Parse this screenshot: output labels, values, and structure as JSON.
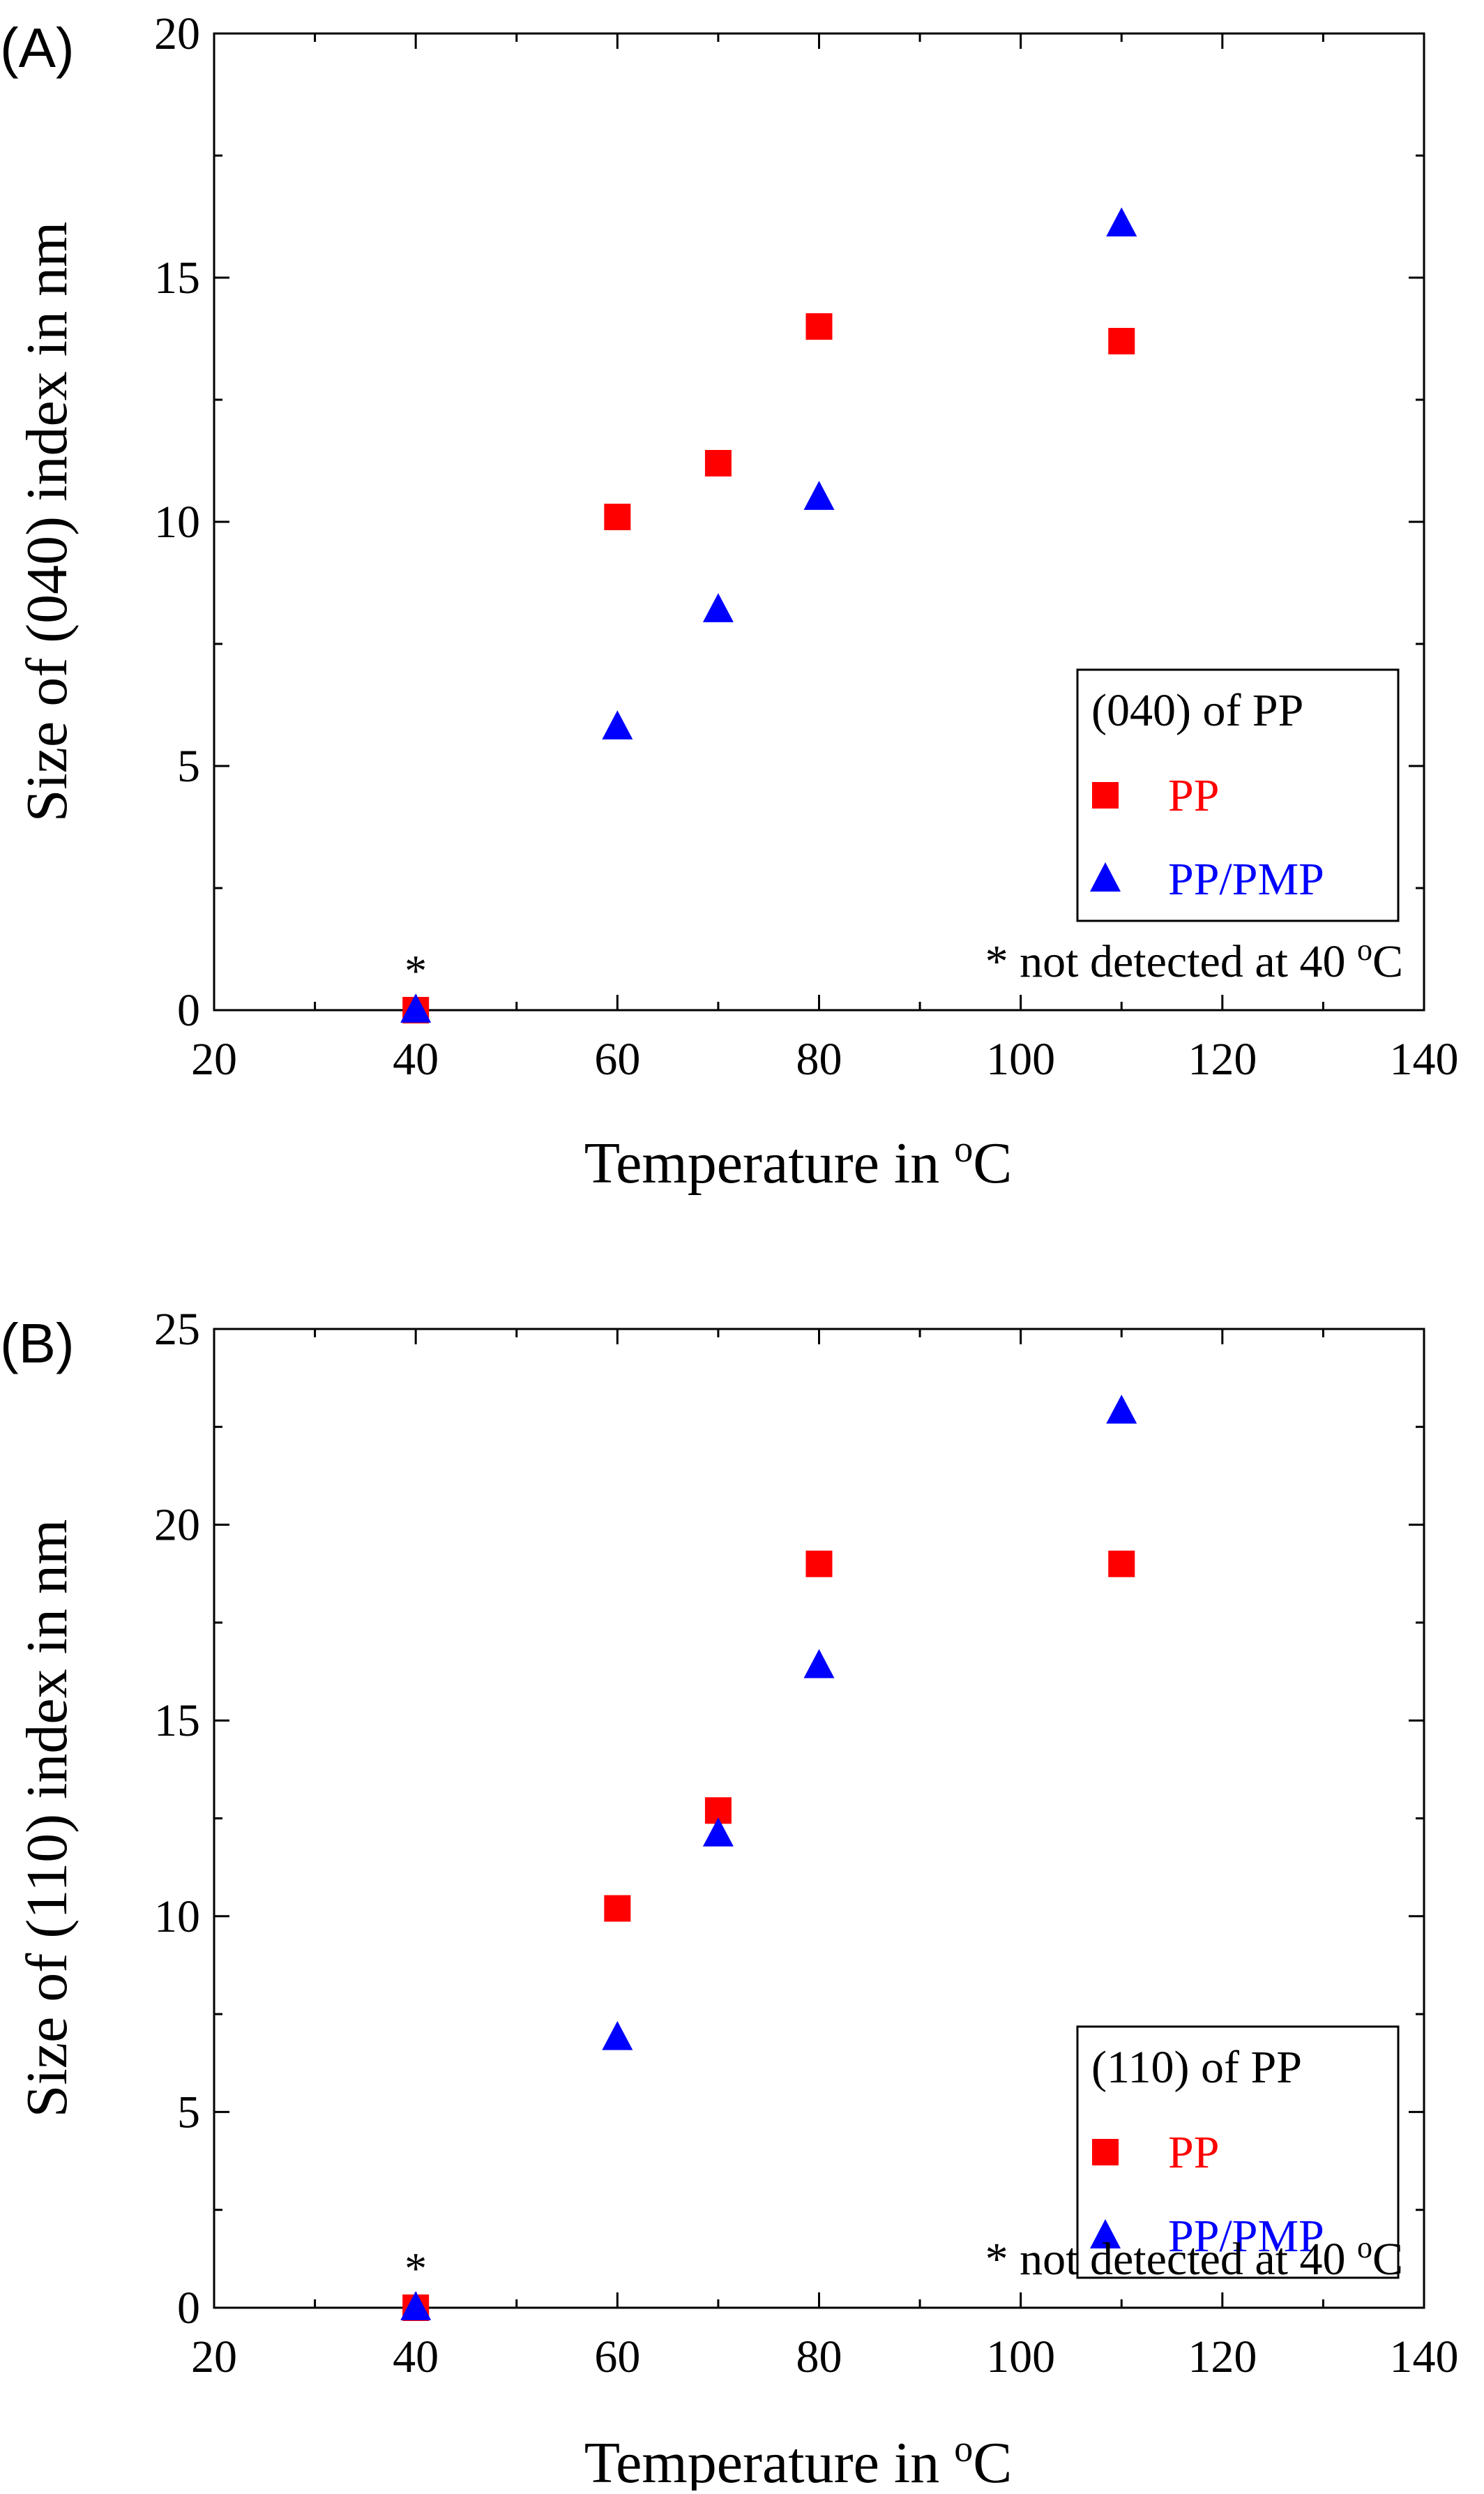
{
  "chart_data": [
    {
      "panel": "(A)",
      "type": "scatter",
      "xlabel": "Temperature in ",
      "xlabel_sup": "o",
      "xlabel_tail": "C",
      "ylabel": "Size of (040) index in nm",
      "xlim": [
        20,
        140
      ],
      "ylim": [
        0,
        20
      ],
      "xticks": [
        20,
        40,
        60,
        80,
        100,
        120,
        140
      ],
      "yticks": [
        0,
        5,
        10,
        15,
        20
      ],
      "legend_title": "(040) of PP",
      "legend_placement": "lower-right",
      "note": "* not detected  at  40 ",
      "note_sup": "o",
      "note_tail": "C",
      "marker_asterisk": "*",
      "series": [
        {
          "name": "PP",
          "marker": "square",
          "color": "#ff0000",
          "x": [
            40,
            60,
            70,
            80,
            110
          ],
          "y": [
            0,
            10.1,
            11.2,
            14.0,
            13.7
          ]
        },
        {
          "name": "PP/PMP",
          "marker": "triangle",
          "color": "#0000ff",
          "x": [
            40,
            60,
            70,
            80,
            110
          ],
          "y": [
            0,
            5.8,
            8.2,
            10.5,
            16.1
          ]
        }
      ]
    },
    {
      "panel": "(B)",
      "type": "scatter",
      "xlabel": "Temperature in ",
      "xlabel_sup": "o",
      "xlabel_tail": "C",
      "ylabel": "Size of (110) index in nm",
      "xlim": [
        20,
        140
      ],
      "ylim": [
        0,
        25
      ],
      "xticks": [
        20,
        40,
        60,
        80,
        100,
        120,
        140
      ],
      "yticks": [
        0,
        5,
        10,
        15,
        20,
        25
      ],
      "legend_title": "(110) of PP",
      "legend_placement": "lower-right",
      "note": "* not detected  at  40 ",
      "note_sup": "o",
      "note_tail": "C",
      "marker_asterisk": "*",
      "series": [
        {
          "name": "PP",
          "marker": "square",
          "color": "#ff0000",
          "x": [
            40,
            60,
            70,
            80,
            110
          ],
          "y": [
            0,
            10.2,
            12.7,
            19.0,
            19.0
          ]
        },
        {
          "name": "PP/PMP",
          "marker": "triangle",
          "color": "#0000ff",
          "x": [
            40,
            60,
            70,
            80,
            110
          ],
          "y": [
            0,
            6.9,
            12.1,
            16.4,
            22.9
          ]
        }
      ]
    }
  ]
}
